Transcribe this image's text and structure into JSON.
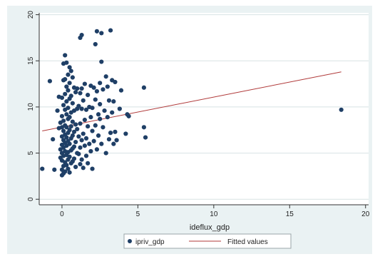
{
  "chart_data": {
    "type": "scatter",
    "title": "",
    "xlabel": "ideflux_gdp",
    "ylabel": "",
    "xlim": [
      -1.5,
      20.2
    ],
    "ylim": [
      -0.6,
      20.2
    ],
    "xticks": [
      0,
      5,
      10,
      15,
      20
    ],
    "yticks": [
      0,
      5,
      10,
      15,
      20
    ],
    "grid": true,
    "legend_position": "bottom",
    "colors": {
      "points": "#1f3f66",
      "fit": "#b03a3a",
      "panel": "#eaf2f3",
      "grid": "#d8e2e4"
    },
    "series": [
      {
        "name": "ipriv_gdp",
        "kind": "scatter",
        "points": [
          [
            -1.3,
            3.3
          ],
          [
            -0.8,
            12.8
          ],
          [
            -0.6,
            6.5
          ],
          [
            -0.5,
            3.2
          ],
          [
            -0.3,
            9.6
          ],
          [
            -0.2,
            7.7
          ],
          [
            -0.2,
            11.1
          ],
          [
            -0.1,
            8.3
          ],
          [
            -0.1,
            5.4
          ],
          [
            -0.1,
            4.5
          ],
          [
            0.0,
            11.0
          ],
          [
            0.0,
            9.0
          ],
          [
            0.0,
            7.8
          ],
          [
            0.0,
            6.8
          ],
          [
            0.0,
            5.9
          ],
          [
            0.0,
            5.0
          ],
          [
            0.0,
            4.2
          ],
          [
            0.0,
            3.2
          ],
          [
            0.0,
            2.6
          ],
          [
            0.1,
            14.7
          ],
          [
            0.1,
            12.9
          ],
          [
            0.1,
            10.2
          ],
          [
            0.1,
            8.5
          ],
          [
            0.1,
            7.4
          ],
          [
            0.1,
            6.4
          ],
          [
            0.1,
            5.6
          ],
          [
            0.1,
            4.7
          ],
          [
            0.1,
            3.6
          ],
          [
            0.1,
            2.8
          ],
          [
            0.2,
            15.6
          ],
          [
            0.2,
            13.0
          ],
          [
            0.2,
            11.4
          ],
          [
            0.2,
            9.7
          ],
          [
            0.2,
            8.0
          ],
          [
            0.2,
            7.0
          ],
          [
            0.2,
            6.1
          ],
          [
            0.2,
            5.2
          ],
          [
            0.2,
            4.0
          ],
          [
            0.2,
            3.0
          ],
          [
            0.3,
            14.8
          ],
          [
            0.3,
            12.2
          ],
          [
            0.3,
            10.6
          ],
          [
            0.3,
            9.2
          ],
          [
            0.3,
            7.8
          ],
          [
            0.3,
            6.7
          ],
          [
            0.3,
            5.8
          ],
          [
            0.3,
            4.8
          ],
          [
            0.3,
            3.7
          ],
          [
            0.4,
            13.5
          ],
          [
            0.4,
            11.8
          ],
          [
            0.4,
            9.9
          ],
          [
            0.4,
            8.7
          ],
          [
            0.4,
            7.2
          ],
          [
            0.4,
            6.3
          ],
          [
            0.4,
            5.1
          ],
          [
            0.4,
            4.3
          ],
          [
            0.4,
            3.3
          ],
          [
            0.5,
            14.3
          ],
          [
            0.5,
            12.6
          ],
          [
            0.5,
            10.9
          ],
          [
            0.5,
            8.9
          ],
          [
            0.5,
            7.5
          ],
          [
            0.5,
            6.0
          ],
          [
            0.5,
            4.6
          ],
          [
            0.5,
            2.9
          ],
          [
            0.6,
            13.9
          ],
          [
            0.6,
            11.2
          ],
          [
            0.6,
            9.4
          ],
          [
            0.6,
            7.9
          ],
          [
            0.6,
            6.6
          ],
          [
            0.6,
            5.3
          ],
          [
            0.6,
            3.9
          ],
          [
            0.7,
            13.2
          ],
          [
            0.7,
            10.4
          ],
          [
            0.7,
            8.4
          ],
          [
            0.7,
            6.9
          ],
          [
            0.7,
            5.5
          ],
          [
            0.7,
            4.1
          ],
          [
            0.8,
            12.1
          ],
          [
            0.8,
            9.6
          ],
          [
            0.8,
            7.3
          ],
          [
            0.8,
            5.7
          ],
          [
            0.8,
            4.4
          ],
          [
            0.9,
            11.6
          ],
          [
            0.9,
            8.1
          ],
          [
            0.9,
            6.2
          ],
          [
            0.9,
            3.5
          ],
          [
            1.0,
            12.0
          ],
          [
            1.0,
            9.8
          ],
          [
            1.0,
            7.6
          ],
          [
            1.0,
            5.0
          ],
          [
            1.1,
            10.1
          ],
          [
            1.1,
            6.8
          ],
          [
            1.1,
            4.9
          ],
          [
            1.2,
            17.5
          ],
          [
            1.2,
            11.5
          ],
          [
            1.2,
            8.2
          ],
          [
            1.2,
            5.6
          ],
          [
            1.2,
            3.8
          ],
          [
            1.3,
            17.8
          ],
          [
            1.3,
            12.0
          ],
          [
            1.3,
            9.8
          ],
          [
            1.3,
            6.4
          ],
          [
            1.3,
            4.3
          ],
          [
            1.4,
            10.7
          ],
          [
            1.4,
            7.1
          ],
          [
            1.4,
            3.4
          ],
          [
            1.5,
            12.5
          ],
          [
            1.5,
            8.6
          ],
          [
            1.5,
            5.8
          ],
          [
            1.6,
            9.7
          ],
          [
            1.6,
            6.6
          ],
          [
            1.6,
            4.7
          ],
          [
            1.7,
            11.3
          ],
          [
            1.7,
            7.9
          ],
          [
            1.7,
            3.9
          ],
          [
            1.8,
            10.0
          ],
          [
            1.8,
            6.0
          ],
          [
            1.9,
            12.3
          ],
          [
            1.9,
            8.9
          ],
          [
            1.9,
            5.2
          ],
          [
            2.0,
            9.9
          ],
          [
            2.0,
            7.4
          ],
          [
            2.0,
            3.3
          ],
          [
            2.1,
            12.1
          ],
          [
            2.1,
            6.3
          ],
          [
            2.2,
            16.8
          ],
          [
            2.2,
            10.8
          ],
          [
            2.2,
            8.0
          ],
          [
            2.3,
            18.2
          ],
          [
            2.3,
            11.7
          ],
          [
            2.3,
            5.4
          ],
          [
            2.4,
            9.2
          ],
          [
            2.4,
            6.9
          ],
          [
            2.5,
            12.6
          ],
          [
            2.5,
            10.3
          ],
          [
            2.5,
            8.7
          ],
          [
            2.6,
            18.0
          ],
          [
            2.6,
            14.9
          ],
          [
            2.6,
            6.0
          ],
          [
            2.7,
            11.9
          ],
          [
            2.7,
            7.8
          ],
          [
            2.8,
            9.6
          ],
          [
            2.9,
            13.3
          ],
          [
            2.9,
            5.0
          ],
          [
            3.0,
            12.2
          ],
          [
            3.0,
            8.9
          ],
          [
            3.1,
            10.7
          ],
          [
            3.1,
            6.5
          ],
          [
            3.2,
            18.3
          ],
          [
            3.2,
            7.2
          ],
          [
            3.3,
            12.9
          ],
          [
            3.3,
            9.4
          ],
          [
            3.4,
            10.6
          ],
          [
            3.4,
            6.0
          ],
          [
            3.5,
            7.3
          ],
          [
            3.5,
            12.7
          ],
          [
            3.6,
            6.4
          ],
          [
            3.8,
            9.8
          ],
          [
            3.9,
            11.8
          ],
          [
            4.2,
            7.1
          ],
          [
            4.3,
            9.2
          ],
          [
            4.4,
            9.0
          ],
          [
            5.4,
            12.1
          ],
          [
            5.4,
            7.8
          ],
          [
            5.5,
            6.7
          ],
          [
            18.4,
            9.7
          ]
        ]
      },
      {
        "name": "Fitted values",
        "kind": "line",
        "points": [
          [
            -1.3,
            7.4
          ],
          [
            18.4,
            13.8
          ]
        ]
      }
    ]
  }
}
